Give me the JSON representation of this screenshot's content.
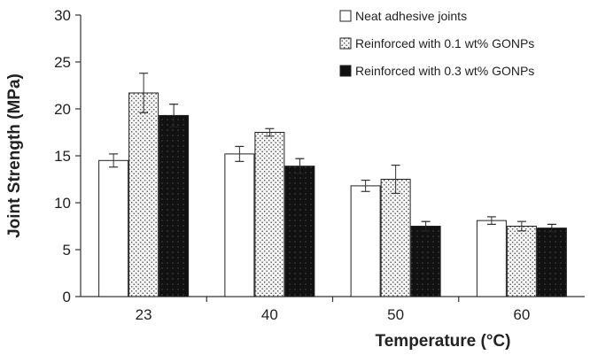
{
  "chart_data": {
    "type": "bar",
    "xlabel": "Temperature (°C)",
    "ylabel": "Joint Strength (MPa)",
    "ylim": [
      0,
      30
    ],
    "yticks": [
      0,
      5,
      10,
      15,
      20,
      25,
      30
    ],
    "categories": [
      "23",
      "40",
      "50",
      "60"
    ],
    "legend_position": "top-right",
    "grid": false,
    "series": [
      {
        "name": "Neat adhesive joints",
        "pattern": "empty",
        "color": "#ffffff",
        "values": [
          14.5,
          15.2,
          11.8,
          8.1
        ],
        "errors": [
          0.7,
          0.8,
          0.6,
          0.4
        ]
      },
      {
        "name": "Reinforced with 0.1 wt% GONPs",
        "pattern": "dotted",
        "color": "#f2f2f2",
        "values": [
          21.7,
          17.5,
          12.5,
          7.5
        ],
        "errors": [
          2.1,
          0.4,
          1.5,
          0.5
        ]
      },
      {
        "name": "Reinforced with 0.3 wt% GONPs",
        "pattern": "black",
        "color": "#111111",
        "values": [
          19.3,
          13.9,
          7.5,
          7.3
        ],
        "errors": [
          1.2,
          0.8,
          0.5,
          0.4
        ]
      }
    ]
  }
}
